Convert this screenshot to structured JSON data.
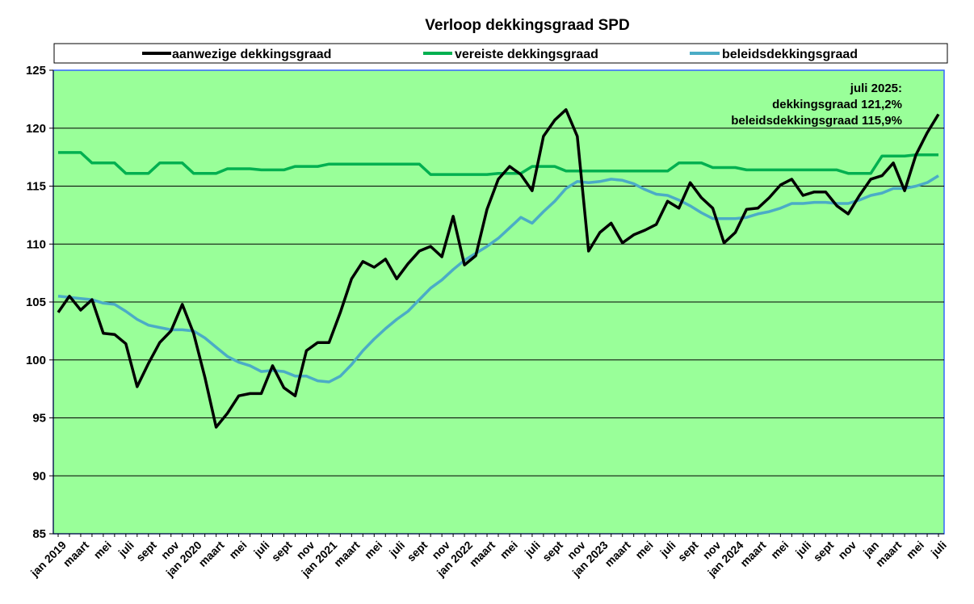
{
  "chart_data": {
    "type": "line",
    "title": "Verloop dekkingsgraad SPD",
    "ylim": [
      85,
      125
    ],
    "yticks": [
      85,
      90,
      95,
      100,
      105,
      110,
      115,
      120,
      125
    ],
    "grid": true,
    "legend_position": "top",
    "plot_background": "#99ff99",
    "x": [
      "jan 2019",
      "feb 2019",
      "maart",
      "apr 2019",
      "mei",
      "jun 2019",
      "juli",
      "aug 2019",
      "sept",
      "okt 2019",
      "nov",
      "dec 2019",
      "jan 2020",
      "feb 2020",
      "maart",
      "apr 2020",
      "mei",
      "jun 2020",
      "juli",
      "aug 2020",
      "sept",
      "okt 2020",
      "nov",
      "dec 2020",
      "jan 2021",
      "feb 2021",
      "maart",
      "apr 2021",
      "mei",
      "jun 2021",
      "juli",
      "aug 2021",
      "sept",
      "okt 2021",
      "nov",
      "dec 2021",
      "jan 2022",
      "feb 2022",
      "maart",
      "apr 2022",
      "mei",
      "jun 2022",
      "juli",
      "aug 2022",
      "sept",
      "okt 2022",
      "nov",
      "dec 2022",
      "jan 2023",
      "feb 2023",
      "maart",
      "apr 2023",
      "mei",
      "jun 2023",
      "juli",
      "aug 2023",
      "sept",
      "okt 2023",
      "nov",
      "dec 2023",
      "jan 2024",
      "feb 2024",
      "maart",
      "apr 2024",
      "mei",
      "jun 2024",
      "juli",
      "aug 2024",
      "sept",
      "okt 2024",
      "nov",
      "dec 2024",
      "jan 2025",
      "feb 2025",
      "maart",
      "apr 2025",
      "mei",
      "jun 2025",
      "juli"
    ],
    "tick_labels": [
      {
        "index": 0,
        "label": "jan 2019"
      },
      {
        "index": 2,
        "label": "maart"
      },
      {
        "index": 4,
        "label": "mei"
      },
      {
        "index": 6,
        "label": "juli"
      },
      {
        "index": 8,
        "label": "sept"
      },
      {
        "index": 10,
        "label": "nov"
      },
      {
        "index": 12,
        "label": "jan 2020"
      },
      {
        "index": 14,
        "label": "maart"
      },
      {
        "index": 16,
        "label": "mei"
      },
      {
        "index": 18,
        "label": "juli"
      },
      {
        "index": 20,
        "label": "sept"
      },
      {
        "index": 22,
        "label": "nov"
      },
      {
        "index": 24,
        "label": "jan 2021"
      },
      {
        "index": 26,
        "label": "maart"
      },
      {
        "index": 28,
        "label": "mei"
      },
      {
        "index": 30,
        "label": "juli"
      },
      {
        "index": 32,
        "label": "sept"
      },
      {
        "index": 34,
        "label": "nov"
      },
      {
        "index": 36,
        "label": "jan 2022"
      },
      {
        "index": 38,
        "label": "maart"
      },
      {
        "index": 40,
        "label": "mei"
      },
      {
        "index": 42,
        "label": "juli"
      },
      {
        "index": 44,
        "label": "sept"
      },
      {
        "index": 46,
        "label": "nov"
      },
      {
        "index": 48,
        "label": "jan 2023"
      },
      {
        "index": 50,
        "label": "maart"
      },
      {
        "index": 52,
        "label": "mei"
      },
      {
        "index": 54,
        "label": "juli"
      },
      {
        "index": 56,
        "label": "sept"
      },
      {
        "index": 58,
        "label": "nov"
      },
      {
        "index": 60,
        "label": "jan 2024"
      },
      {
        "index": 62,
        "label": "maart"
      },
      {
        "index": 64,
        "label": "mei"
      },
      {
        "index": 66,
        "label": "juli"
      },
      {
        "index": 68,
        "label": "sept"
      },
      {
        "index": 70,
        "label": "nov"
      },
      {
        "index": 72,
        "label": "jan"
      },
      {
        "index": 74,
        "label": "maart"
      },
      {
        "index": 76,
        "label": "mei"
      },
      {
        "index": 78,
        "label": "juli"
      }
    ],
    "series": [
      {
        "name": "aanwezige dekkingsgraad",
        "color": "#000000",
        "values": [
          104.1,
          105.5,
          104.3,
          105.2,
          102.3,
          102.2,
          101.4,
          97.7,
          99.7,
          101.5,
          102.5,
          104.8,
          102.3,
          98.5,
          94.2,
          95.4,
          96.9,
          97.1,
          97.1,
          99.5,
          97.6,
          96.9,
          100.8,
          101.5,
          101.5,
          104.1,
          107.0,
          108.5,
          108.0,
          108.7,
          107.0,
          108.3,
          109.4,
          109.8,
          108.9,
          112.4,
          108.2,
          109.0,
          113.0,
          115.6,
          116.7,
          116.0,
          114.6,
          119.3,
          120.7,
          121.6,
          119.3,
          109.4,
          111.0,
          111.8,
          110.1,
          110.8,
          111.2,
          111.7,
          113.7,
          113.1,
          115.3,
          114.0,
          113.1,
          110.1,
          111.0,
          113.0,
          113.1,
          114.0,
          115.1,
          115.6,
          114.2,
          114.5,
          114.5,
          113.3,
          112.6,
          114.2,
          115.6,
          115.9,
          117.0,
          114.6,
          117.7,
          119.6,
          121.2
        ]
      },
      {
        "name": "vereiste dekkingsgraad",
        "color": "#00b050",
        "values": [
          117.9,
          117.9,
          117.9,
          117.0,
          117.0,
          117.0,
          116.1,
          116.1,
          116.1,
          117.0,
          117.0,
          117.0,
          116.1,
          116.1,
          116.1,
          116.5,
          116.5,
          116.5,
          116.4,
          116.4,
          116.4,
          116.7,
          116.7,
          116.7,
          116.9,
          116.9,
          116.9,
          116.9,
          116.9,
          116.9,
          116.9,
          116.9,
          116.9,
          116.0,
          116.0,
          116.0,
          116.0,
          116.0,
          116.0,
          116.1,
          116.1,
          116.1,
          116.7,
          116.7,
          116.7,
          116.3,
          116.3,
          116.3,
          116.3,
          116.3,
          116.3,
          116.3,
          116.3,
          116.3,
          116.3,
          117.0,
          117.0,
          117.0,
          116.6,
          116.6,
          116.6,
          116.4,
          116.4,
          116.4,
          116.4,
          116.4,
          116.4,
          116.4,
          116.4,
          116.4,
          116.1,
          116.1,
          116.1,
          117.6,
          117.6,
          117.6,
          117.7,
          117.7,
          117.7
        ]
      },
      {
        "name": "beleidsdekkingsgraad",
        "color": "#4bacc6",
        "values": [
          105.5,
          105.4,
          105.3,
          105.2,
          104.9,
          104.8,
          104.2,
          103.5,
          103.0,
          102.8,
          102.6,
          102.6,
          102.5,
          101.9,
          101.1,
          100.3,
          99.8,
          99.5,
          99.0,
          99.1,
          99.0,
          98.6,
          98.6,
          98.2,
          98.1,
          98.6,
          99.6,
          100.8,
          101.8,
          102.7,
          103.5,
          104.2,
          105.2,
          106.2,
          106.9,
          107.8,
          108.6,
          109.2,
          109.8,
          110.5,
          111.4,
          112.3,
          111.8,
          112.8,
          113.7,
          114.8,
          115.4,
          115.3,
          115.4,
          115.6,
          115.5,
          115.2,
          114.7,
          114.3,
          114.2,
          113.8,
          113.3,
          112.7,
          112.2,
          112.2,
          112.2,
          112.3,
          112.6,
          112.8,
          113.1,
          113.5,
          113.5,
          113.6,
          113.6,
          113.5,
          113.5,
          113.8,
          114.2,
          114.4,
          114.8,
          114.8,
          115.0,
          115.3,
          115.9
        ]
      }
    ],
    "annotation": [
      "juli 2025:",
      "dekkingsgraad 121,2%",
      "beleidsdekkingsgraad 115,9%"
    ]
  }
}
